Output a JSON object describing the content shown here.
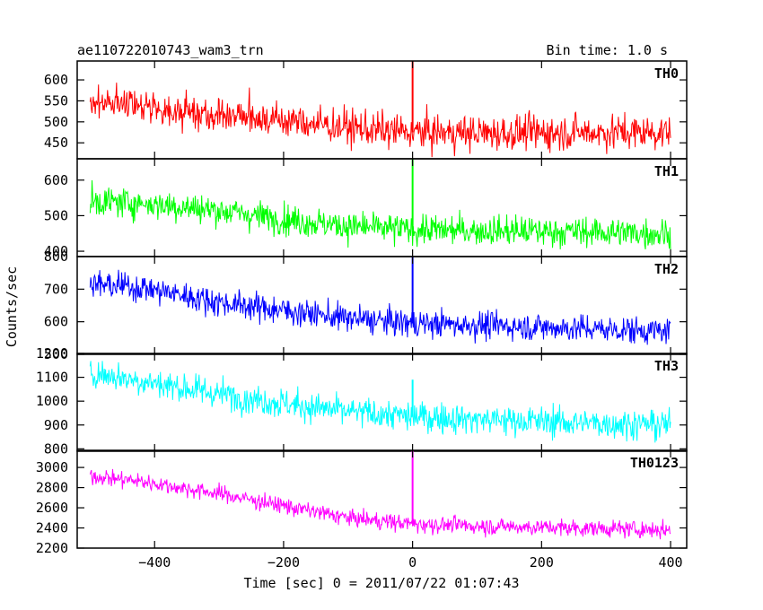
{
  "header": {
    "title": "ae110722010743_wam3_trn",
    "bin_time": "Bin time: 1.0 s"
  },
  "axes": {
    "xlabel": "Time [sec] 0 = 2011/07/22 01:07:43",
    "ylabel": "Counts/sec"
  },
  "chart_data": {
    "type": "line",
    "x_range": [
      -520,
      425
    ],
    "x_ticks": [
      -400,
      -200,
      0,
      200,
      400
    ],
    "x_tick_labels": [
      "−400",
      "−200",
      "0",
      "200",
      "400"
    ],
    "panels": [
      {
        "name": "TH0",
        "color": "#ff0000",
        "ylim": [
          412,
          645
        ],
        "y_ticks": [
          450,
          500,
          550,
          600
        ],
        "trend": [
          [
            -500,
            548
          ],
          [
            -460,
            550
          ],
          [
            -420,
            535
          ],
          [
            -300,
            520
          ],
          [
            -150,
            495
          ],
          [
            -40,
            478
          ],
          [
            0,
            475
          ],
          [
            100,
            473
          ],
          [
            250,
            475
          ],
          [
            400,
            475
          ]
        ],
        "noise_sd": 28,
        "spike": {
          "x": 0,
          "peak": 645
        }
      },
      {
        "name": "TH1",
        "color": "#00ff00",
        "ylim": [
          385,
          660
        ],
        "y_ticks": [
          400,
          500,
          600
        ],
        "trend": [
          [
            -500,
            540
          ],
          [
            -420,
            535
          ],
          [
            -300,
            515
          ],
          [
            -200,
            490
          ],
          [
            -100,
            470
          ],
          [
            0,
            460
          ],
          [
            100,
            458
          ],
          [
            250,
            455
          ],
          [
            400,
            450
          ]
        ],
        "noise_sd": 28,
        "spike": {
          "x": 0,
          "peak": 660
        }
      },
      {
        "name": "TH2",
        "color": "#0000ff",
        "ylim": [
          500,
          800
        ],
        "y_ticks": [
          500,
          600,
          700,
          800
        ],
        "trend": [
          [
            -500,
            715
          ],
          [
            -420,
            705
          ],
          [
            -300,
            660
          ],
          [
            -200,
            635
          ],
          [
            -100,
            610
          ],
          [
            0,
            595
          ],
          [
            100,
            590
          ],
          [
            250,
            580
          ],
          [
            400,
            570
          ]
        ],
        "noise_sd": 28,
        "spike": {
          "x": 0,
          "peak": 800
        }
      },
      {
        "name": "TH3",
        "color": "#00ffff",
        "ylim": [
          790,
          1200
        ],
        "y_ticks": [
          800,
          900,
          1000,
          1100,
          1200
        ],
        "trend": [
          [
            -500,
            1120
          ],
          [
            -420,
            1085
          ],
          [
            -300,
            1030
          ],
          [
            -200,
            990
          ],
          [
            -100,
            955
          ],
          [
            0,
            935
          ],
          [
            100,
            925
          ],
          [
            250,
            910
          ],
          [
            400,
            900
          ]
        ],
        "noise_sd": 42,
        "spike": {
          "x": 0,
          "peak": 1090
        }
      },
      {
        "name": "TH0123",
        "color": "#ff00ff",
        "ylim": [
          2200,
          3170
        ],
        "y_ticks": [
          2200,
          2400,
          2600,
          2800,
          3000
        ],
        "trend": [
          [
            -500,
            2920
          ],
          [
            -420,
            2860
          ],
          [
            -300,
            2740
          ],
          [
            -200,
            2620
          ],
          [
            -100,
            2500
          ],
          [
            0,
            2440
          ],
          [
            100,
            2420
          ],
          [
            250,
            2400
          ],
          [
            400,
            2380
          ]
        ],
        "noise_sd": 55,
        "spike": {
          "x": 0,
          "peak": 3170
        }
      }
    ]
  }
}
